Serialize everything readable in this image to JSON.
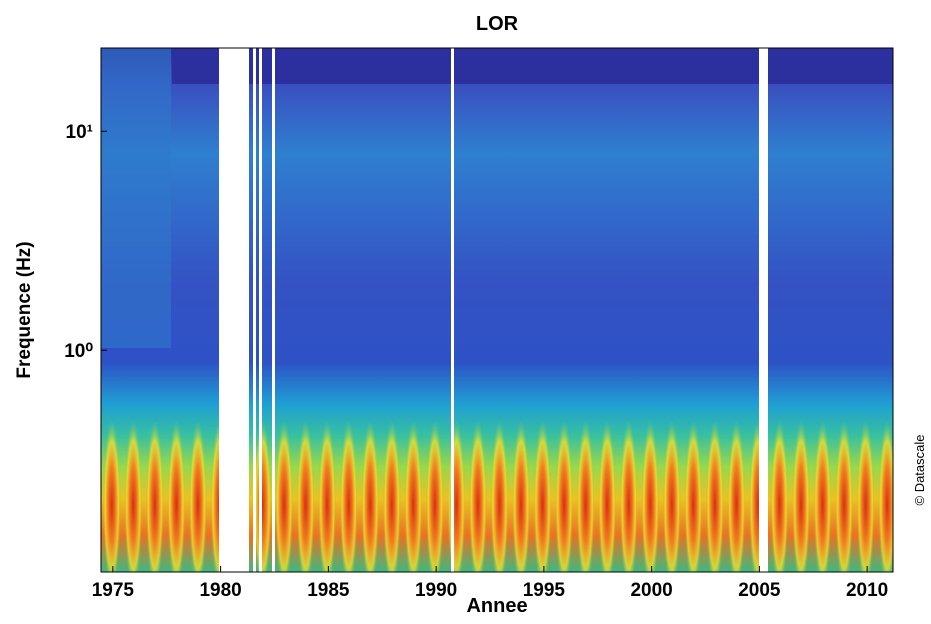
{
  "chart_data": {
    "type": "spectrogram",
    "title": "LOR",
    "x_label": "Annee",
    "y_label": "Frequence (Hz)",
    "xlim": [
      1974.45,
      2011.2
    ],
    "xticks": [
      1975,
      1980,
      1985,
      1990,
      1995,
      2000,
      2005,
      2010
    ],
    "ylim": [
      0.097,
      24
    ],
    "y_scale": "log",
    "yticks": [
      {
        "value": 1,
        "label": "10⁰"
      },
      {
        "value": 10,
        "label": "10¹"
      }
    ]
  },
  "credit": "© Datascale"
}
